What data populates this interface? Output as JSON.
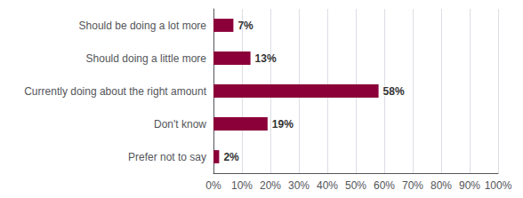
{
  "chart_data": {
    "type": "bar",
    "orientation": "horizontal",
    "categories": [
      "Should be doing a lot more",
      "Should doing a little more",
      "Currently doing about the right amount",
      "Don't know",
      "Prefer not to say"
    ],
    "values": [
      7,
      13,
      58,
      19,
      2
    ],
    "value_labels": [
      "7%",
      "13%",
      "58%",
      "19%",
      "2%"
    ],
    "data_labels": true,
    "color": "#8B0038",
    "xlim": [
      0,
      100
    ],
    "xticks": [
      {
        "value": 0,
        "label": "0%"
      },
      {
        "value": 10,
        "label": "10%"
      },
      {
        "value": 20,
        "label": "20%"
      },
      {
        "value": 30,
        "label": "30%"
      },
      {
        "value": 40,
        "label": "40%"
      },
      {
        "value": 50,
        "label": "50%"
      },
      {
        "value": 60,
        "label": "60%"
      },
      {
        "value": 70,
        "label": "70%"
      },
      {
        "value": 80,
        "label": "80%"
      },
      {
        "value": 90,
        "label": "90%"
      },
      {
        "value": 100,
        "label": "100%"
      }
    ],
    "grid": true
  }
}
